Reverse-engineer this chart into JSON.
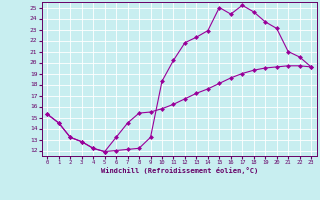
{
  "bg_color": "#c8eef0",
  "grid_color": "#ffffff",
  "line_color": "#990099",
  "xlim": [
    -0.5,
    23.5
  ],
  "ylim": [
    11.5,
    25.5
  ],
  "xticks": [
    0,
    1,
    2,
    3,
    4,
    5,
    6,
    7,
    8,
    9,
    10,
    11,
    12,
    13,
    14,
    15,
    16,
    17,
    18,
    19,
    20,
    21,
    22,
    23
  ],
  "yticks": [
    12,
    13,
    14,
    15,
    16,
    17,
    18,
    19,
    20,
    21,
    22,
    23,
    24,
    25
  ],
  "xlabel": "Windchill (Refroidissement éolien,°C)",
  "curve1_x": [
    0,
    1,
    2,
    3,
    4,
    5,
    6,
    7,
    8,
    9,
    10,
    11,
    12,
    13,
    14,
    15,
    16,
    17,
    18,
    19,
    20,
    21,
    22,
    23
  ],
  "curve1_y": [
    15.3,
    14.5,
    13.2,
    12.8,
    12.2,
    11.9,
    12.0,
    12.1,
    12.2,
    13.2,
    18.3,
    20.2,
    21.8,
    22.3,
    22.9,
    25.0,
    24.4,
    25.2,
    24.6,
    23.7,
    23.1,
    21.0,
    20.5,
    19.6
  ],
  "curve2_x": [
    0,
    1,
    2,
    3,
    4,
    5,
    6,
    7,
    8,
    9,
    10,
    11,
    12,
    13,
    14,
    15,
    16,
    17,
    18,
    19,
    20,
    21,
    22,
    23
  ],
  "curve2_y": [
    15.3,
    14.5,
    13.2,
    12.8,
    12.2,
    11.9,
    13.2,
    14.5,
    15.4,
    15.5,
    15.8,
    16.2,
    16.7,
    17.2,
    17.6,
    18.1,
    18.6,
    19.0,
    19.3,
    19.5,
    19.6,
    19.7,
    19.7,
    19.6
  ]
}
